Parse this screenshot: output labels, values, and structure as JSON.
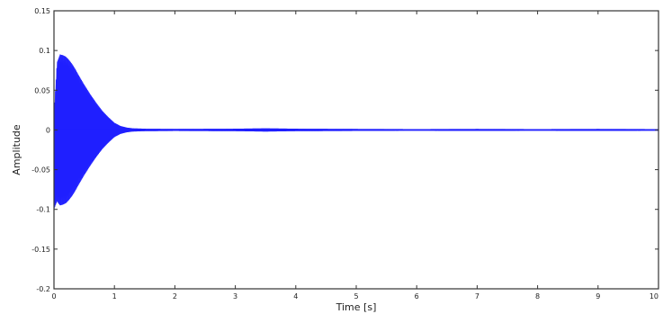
{
  "chart_data": {
    "type": "line",
    "title": "",
    "xlabel": "Time [s]",
    "ylabel": "Amplitude",
    "xlim": [
      0,
      10
    ],
    "ylim": [
      -0.2,
      0.15
    ],
    "x_ticks": [
      "0",
      "1",
      "2",
      "3",
      "4",
      "5",
      "6",
      "7",
      "8",
      "9",
      "10"
    ],
    "y_ticks": [
      "0.15",
      "0.1",
      "0.05",
      "0",
      "-0.05",
      "-0.1",
      "-0.15",
      "-0.2"
    ],
    "grid": false,
    "series": [
      {
        "color": "#1f1fff",
        "x": [
          0,
          0.05,
          0.1,
          0.15,
          0.2,
          0.25,
          0.3,
          0.35,
          0.4,
          0.5,
          0.6,
          0.7,
          0.8,
          0.9,
          1.0,
          1.1,
          1.2,
          1.3,
          1.5,
          2.0,
          3.0,
          3.5,
          4.0,
          5.0,
          6.0,
          7.0,
          8.0,
          9.0,
          10.0
        ],
        "upper_envelope": [
          0.02,
          0.085,
          0.095,
          0.094,
          0.092,
          0.088,
          0.083,
          0.077,
          0.07,
          0.057,
          0.045,
          0.034,
          0.024,
          0.016,
          0.009,
          0.005,
          0.003,
          0.002,
          0.0015,
          0.0012,
          0.0015,
          0.002,
          0.0015,
          0.0012,
          0.001,
          0.0012,
          0.001,
          0.0012,
          0.001
        ],
        "lower_envelope": [
          -0.1,
          -0.09,
          -0.095,
          -0.094,
          -0.092,
          -0.088,
          -0.083,
          -0.077,
          -0.07,
          -0.057,
          -0.045,
          -0.034,
          -0.024,
          -0.016,
          -0.009,
          -0.005,
          -0.003,
          -0.002,
          -0.0015,
          -0.0012,
          -0.0015,
          -0.002,
          -0.0015,
          -0.0012,
          -0.001,
          -0.0012,
          -0.001,
          -0.0012,
          -0.001
        ]
      }
    ]
  }
}
